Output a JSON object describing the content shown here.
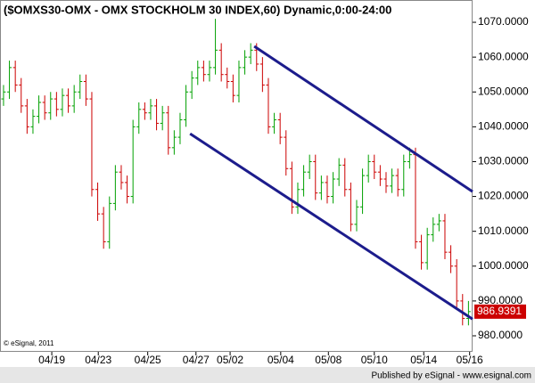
{
  "chart_data": {
    "type": "ohlc",
    "title": "($OMXS30-OMX - OMX STOCKHOLM 30 INDEX,60) Dynamic,0:00-24:00",
    "copyright": "© eSignal, 2011",
    "footer": "Published by eSignal - www.esignal.com",
    "up_color": "#00a000",
    "down_color": "#cc0000",
    "channel_color": "#1c1c8c",
    "last_label_color": "#cc0000",
    "open": [
      1048,
      1050,
      1057,
      1052,
      1046,
      1040,
      1043,
      1047,
      1044,
      1048,
      1045,
      1049,
      1046,
      1050,
      1053,
      1048,
      1022,
      1015,
      1007,
      1018,
      1027,
      1024,
      1020,
      1040,
      1045,
      1044,
      1046,
      1041,
      1044,
      1034,
      1037,
      1042,
      1050,
      1054,
      1057,
      1055,
      1057,
      1062,
      1055,
      1053,
      1049,
      1057,
      1060,
      1062,
      1058,
      1052,
      1040,
      1042,
      1037,
      1028,
      1017,
      1022,
      1027,
      1030,
      1021,
      1024,
      1020,
      1025,
      1029,
      1022,
      1012,
      1017,
      1026,
      1030,
      1027,
      1025,
      1023,
      1026,
      1022,
      1030,
      1032,
      1007,
      1001,
      1009,
      1012,
      1013,
      1004,
      1000,
      990,
      985
    ],
    "high": [
      1052,
      1059,
      1059,
      1054,
      1048,
      1045,
      1049,
      1049,
      1050,
      1050,
      1051,
      1051,
      1052,
      1055,
      1055,
      1050,
      1024,
      1017,
      1020,
      1029,
      1029,
      1026,
      1042,
      1047,
      1047,
      1048,
      1048,
      1046,
      1046,
      1039,
      1044,
      1052,
      1056,
      1059,
      1059,
      1059,
      1071,
      1064,
      1057,
      1055,
      1059,
      1062,
      1064,
      1064,
      1060,
      1054,
      1044,
      1044,
      1039,
      1030,
      1024,
      1029,
      1032,
      1032,
      1026,
      1026,
      1027,
      1031,
      1031,
      1024,
      1019,
      1028,
      1032,
      1032,
      1029,
      1027,
      1028,
      1028,
      1032,
      1034,
      1034,
      1009,
      1011,
      1014,
      1015,
      1015,
      1006,
      1002,
      992,
      990
    ],
    "low": [
      1046,
      1048,
      1050,
      1044,
      1038,
      1038,
      1041,
      1042,
      1042,
      1043,
      1043,
      1044,
      1044,
      1048,
      1046,
      1020,
      1013,
      1005,
      1005,
      1016,
      1022,
      1018,
      1018,
      1038,
      1042,
      1042,
      1039,
      1039,
      1032,
      1032,
      1035,
      1040,
      1048,
      1052,
      1053,
      1053,
      1055,
      1053,
      1051,
      1047,
      1047,
      1055,
      1058,
      1056,
      1050,
      1038,
      1038,
      1035,
      1026,
      1015,
      1015,
      1020,
      1025,
      1019,
      1019,
      1018,
      1018,
      1023,
      1020,
      1010,
      1010,
      1015,
      1024,
      1025,
      1023,
      1021,
      1021,
      1020,
      1020,
      1028,
      1005,
      999,
      999,
      1007,
      1010,
      1002,
      998,
      988,
      983,
      983
    ],
    "close": [
      1050,
      1057,
      1052,
      1046,
      1040,
      1043,
      1047,
      1044,
      1048,
      1045,
      1049,
      1046,
      1050,
      1053,
      1048,
      1022,
      1015,
      1007,
      1018,
      1027,
      1024,
      1020,
      1040,
      1045,
      1044,
      1046,
      1041,
      1044,
      1034,
      1037,
      1042,
      1050,
      1054,
      1057,
      1055,
      1057,
      1062,
      1055,
      1053,
      1049,
      1057,
      1060,
      1062,
      1058,
      1052,
      1040,
      1042,
      1037,
      1028,
      1017,
      1022,
      1027,
      1030,
      1021,
      1024,
      1020,
      1025,
      1029,
      1022,
      1012,
      1017,
      1026,
      1030,
      1027,
      1025,
      1023,
      1026,
      1022,
      1030,
      1032,
      1007,
      1001,
      1009,
      1012,
      1013,
      1004,
      1000,
      990,
      985,
      986.9391
    ],
    "channels": [
      {
        "x": [
          42.6,
          79.7
        ],
        "y": [
          1063.1,
          1021.4
        ]
      },
      {
        "x": [
          31.7,
          79.7
        ],
        "y": [
          1038.0,
          984.8
        ]
      }
    ],
    "xlim": [
      -0.6,
      79.7
    ],
    "xticks": [
      {
        "value": 8.2,
        "label": "04/19"
      },
      {
        "value": 16.1,
        "label": "04/23"
      },
      {
        "value": 24.5,
        "label": "04/25"
      },
      {
        "value": 32.7,
        "label": "04/27"
      },
      {
        "value": 38.5,
        "label": "05/02"
      },
      {
        "value": 47.1,
        "label": "05/04"
      },
      {
        "value": 55.2,
        "label": "05/08"
      },
      {
        "value": 63,
        "label": "05/10"
      },
      {
        "value": 71.4,
        "label": "05/14"
      },
      {
        "value": 79.2,
        "label": "05/16"
      }
    ],
    "ylim": [
      975.4,
      1076.4
    ],
    "yticks": [
      {
        "value": 980,
        "label": "980.0000"
      },
      {
        "value": 990,
        "label": "990.0000"
      },
      {
        "value": 1000,
        "label": "1000.0000"
      },
      {
        "value": 1010,
        "label": "1010.0000"
      },
      {
        "value": 1020,
        "label": "1020.0000"
      },
      {
        "value": 1030,
        "label": "1030.0000"
      },
      {
        "value": 1040,
        "label": "1040.0000"
      },
      {
        "value": 1050,
        "label": "1050.0000"
      },
      {
        "value": 1060,
        "label": "1060.0000"
      },
      {
        "value": 1070,
        "label": "1070.0000"
      }
    ]
  }
}
